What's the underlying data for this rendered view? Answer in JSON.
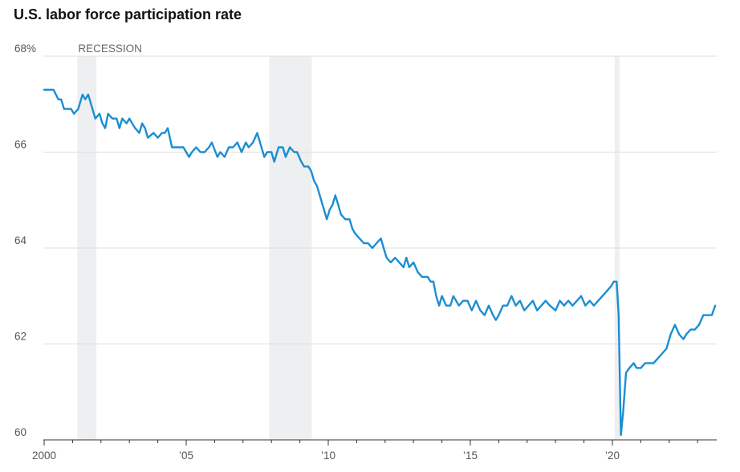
{
  "chart_data": {
    "type": "line",
    "title": "U.S. labor force participation rate",
    "xlabel": "",
    "ylabel": "",
    "ylim": [
      60,
      68
    ],
    "xlim": [
      2000,
      2023.7
    ],
    "grid": true,
    "y_ticks": [
      {
        "value": 68,
        "label": "68%"
      },
      {
        "value": 66,
        "label": "66"
      },
      {
        "value": 64,
        "label": "64"
      },
      {
        "value": 62,
        "label": "62"
      },
      {
        "value": 60,
        "label": "60"
      }
    ],
    "x_ticks": [
      {
        "value": 2000,
        "label": "2000"
      },
      {
        "value": 2005,
        "label": "’05"
      },
      {
        "value": 2010,
        "label": "’10"
      },
      {
        "value": 2015,
        "label": "’15"
      },
      {
        "value": 2020,
        "label": "’20"
      }
    ],
    "recession_label": "RECESSION",
    "recessions": [
      [
        2001.17,
        2001.84
      ],
      [
        2007.92,
        2009.42
      ],
      [
        2020.08,
        2020.25
      ]
    ],
    "series": [
      {
        "color": "#1b8ed1",
        "points": [
          [
            2000.0,
            67.3
          ],
          [
            2000.33,
            67.3
          ],
          [
            2000.5,
            67.1
          ],
          [
            2000.6,
            67.1
          ],
          [
            2000.7,
            66.9
          ],
          [
            2000.95,
            66.9
          ],
          [
            2001.05,
            66.8
          ],
          [
            2001.2,
            66.9
          ],
          [
            2001.35,
            67.2
          ],
          [
            2001.45,
            67.1
          ],
          [
            2001.55,
            67.2
          ],
          [
            2001.7,
            66.9
          ],
          [
            2001.8,
            66.7
          ],
          [
            2001.95,
            66.8
          ],
          [
            2002.05,
            66.6
          ],
          [
            2002.15,
            66.5
          ],
          [
            2002.25,
            66.8
          ],
          [
            2002.4,
            66.7
          ],
          [
            2002.55,
            66.7
          ],
          [
            2002.65,
            66.5
          ],
          [
            2002.75,
            66.7
          ],
          [
            2002.9,
            66.6
          ],
          [
            2003.0,
            66.7
          ],
          [
            2003.1,
            66.6
          ],
          [
            2003.2,
            66.5
          ],
          [
            2003.35,
            66.4
          ],
          [
            2003.45,
            66.6
          ],
          [
            2003.55,
            66.5
          ],
          [
            2003.65,
            66.3
          ],
          [
            2003.85,
            66.4
          ],
          [
            2004.0,
            66.3
          ],
          [
            2004.15,
            66.4
          ],
          [
            2004.25,
            66.4
          ],
          [
            2004.35,
            66.5
          ],
          [
            2004.5,
            66.1
          ],
          [
            2004.7,
            66.1
          ],
          [
            2004.9,
            66.1
          ],
          [
            2005.0,
            66.0
          ],
          [
            2005.1,
            65.9
          ],
          [
            2005.2,
            66.0
          ],
          [
            2005.35,
            66.1
          ],
          [
            2005.5,
            66.0
          ],
          [
            2005.65,
            66.0
          ],
          [
            2005.8,
            66.1
          ],
          [
            2005.9,
            66.2
          ],
          [
            2006.1,
            65.9
          ],
          [
            2006.2,
            66.0
          ],
          [
            2006.35,
            65.9
          ],
          [
            2006.5,
            66.1
          ],
          [
            2006.65,
            66.1
          ],
          [
            2006.8,
            66.2
          ],
          [
            2006.95,
            66.0
          ],
          [
            2007.1,
            66.2
          ],
          [
            2007.2,
            66.1
          ],
          [
            2007.35,
            66.2
          ],
          [
            2007.5,
            66.4
          ],
          [
            2007.6,
            66.2
          ],
          [
            2007.75,
            65.9
          ],
          [
            2007.85,
            66.0
          ],
          [
            2008.0,
            66.0
          ],
          [
            2008.1,
            65.8
          ],
          [
            2008.25,
            66.1
          ],
          [
            2008.4,
            66.1
          ],
          [
            2008.5,
            65.9
          ],
          [
            2008.65,
            66.1
          ],
          [
            2008.8,
            66.0
          ],
          [
            2008.9,
            66.0
          ],
          [
            2009.05,
            65.8
          ],
          [
            2009.15,
            65.7
          ],
          [
            2009.3,
            65.7
          ],
          [
            2009.4,
            65.6
          ],
          [
            2009.5,
            65.4
          ],
          [
            2009.6,
            65.3
          ],
          [
            2009.7,
            65.1
          ],
          [
            2009.8,
            64.9
          ],
          [
            2009.95,
            64.6
          ],
          [
            2010.05,
            64.8
          ],
          [
            2010.15,
            64.9
          ],
          [
            2010.25,
            65.1
          ],
          [
            2010.35,
            64.9
          ],
          [
            2010.45,
            64.7
          ],
          [
            2010.6,
            64.6
          ],
          [
            2010.75,
            64.6
          ],
          [
            2010.85,
            64.4
          ],
          [
            2010.95,
            64.3
          ],
          [
            2011.1,
            64.2
          ],
          [
            2011.25,
            64.1
          ],
          [
            2011.4,
            64.1
          ],
          [
            2011.55,
            64.0
          ],
          [
            2011.7,
            64.1
          ],
          [
            2011.85,
            64.2
          ],
          [
            2011.95,
            64.0
          ],
          [
            2012.05,
            63.8
          ],
          [
            2012.2,
            63.7
          ],
          [
            2012.35,
            63.8
          ],
          [
            2012.5,
            63.7
          ],
          [
            2012.65,
            63.6
          ],
          [
            2012.75,
            63.8
          ],
          [
            2012.85,
            63.6
          ],
          [
            2013.0,
            63.7
          ],
          [
            2013.15,
            63.5
          ],
          [
            2013.3,
            63.4
          ],
          [
            2013.5,
            63.4
          ],
          [
            2013.6,
            63.3
          ],
          [
            2013.7,
            63.3
          ],
          [
            2013.8,
            63.0
          ],
          [
            2013.9,
            62.8
          ],
          [
            2014.0,
            63.0
          ],
          [
            2014.15,
            62.8
          ],
          [
            2014.3,
            62.8
          ],
          [
            2014.4,
            63.0
          ],
          [
            2014.5,
            62.9
          ],
          [
            2014.6,
            62.8
          ],
          [
            2014.75,
            62.9
          ],
          [
            2014.9,
            62.9
          ],
          [
            2015.05,
            62.7
          ],
          [
            2015.2,
            62.9
          ],
          [
            2015.35,
            62.7
          ],
          [
            2015.5,
            62.6
          ],
          [
            2015.65,
            62.8
          ],
          [
            2015.8,
            62.6
          ],
          [
            2015.9,
            62.5
          ],
          [
            2016.0,
            62.6
          ],
          [
            2016.15,
            62.8
          ],
          [
            2016.3,
            62.8
          ],
          [
            2016.45,
            63.0
          ],
          [
            2016.6,
            62.8
          ],
          [
            2016.75,
            62.9
          ],
          [
            2016.9,
            62.7
          ],
          [
            2017.05,
            62.8
          ],
          [
            2017.2,
            62.9
          ],
          [
            2017.35,
            62.7
          ],
          [
            2017.5,
            62.8
          ],
          [
            2017.65,
            62.9
          ],
          [
            2017.8,
            62.8
          ],
          [
            2018.0,
            62.7
          ],
          [
            2018.15,
            62.9
          ],
          [
            2018.3,
            62.8
          ],
          [
            2018.45,
            62.9
          ],
          [
            2018.6,
            62.8
          ],
          [
            2018.75,
            62.9
          ],
          [
            2018.9,
            63.0
          ],
          [
            2019.05,
            62.8
          ],
          [
            2019.2,
            62.9
          ],
          [
            2019.35,
            62.8
          ],
          [
            2019.5,
            62.9
          ],
          [
            2019.65,
            63.0
          ],
          [
            2019.8,
            63.1
          ],
          [
            2019.95,
            63.2
          ],
          [
            2020.05,
            63.3
          ],
          [
            2020.15,
            63.3
          ],
          [
            2020.22,
            62.6
          ],
          [
            2020.3,
            60.1
          ],
          [
            2020.38,
            60.6
          ],
          [
            2020.48,
            61.4
          ],
          [
            2020.6,
            61.5
          ],
          [
            2020.75,
            61.6
          ],
          [
            2020.85,
            61.5
          ],
          [
            2021.0,
            61.5
          ],
          [
            2021.15,
            61.6
          ],
          [
            2021.3,
            61.6
          ],
          [
            2021.45,
            61.6
          ],
          [
            2021.6,
            61.7
          ],
          [
            2021.75,
            61.8
          ],
          [
            2021.9,
            61.9
          ],
          [
            2022.05,
            62.2
          ],
          [
            2022.2,
            62.4
          ],
          [
            2022.35,
            62.2
          ],
          [
            2022.5,
            62.1
          ],
          [
            2022.6,
            62.2
          ],
          [
            2022.75,
            62.3
          ],
          [
            2022.9,
            62.3
          ],
          [
            2023.05,
            62.4
          ],
          [
            2023.2,
            62.6
          ],
          [
            2023.35,
            62.6
          ],
          [
            2023.5,
            62.6
          ],
          [
            2023.62,
            62.8
          ]
        ]
      }
    ]
  }
}
